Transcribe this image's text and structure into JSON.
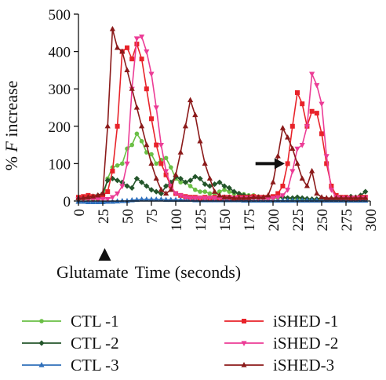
{
  "chart_data": {
    "type": "line",
    "title": "",
    "ylabel_prefix": "% ",
    "ylabel_var": "F",
    "ylabel_suffix": " increase",
    "xlabel_left": "Glutamate",
    "xlabel_right": "Time (seconds)",
    "xlim": [
      0,
      300
    ],
    "ylim": [
      0,
      500
    ],
    "x_ticks": [
      0,
      25,
      50,
      75,
      100,
      125,
      150,
      175,
      200,
      225,
      250,
      275,
      300
    ],
    "y_ticks": [
      0,
      100,
      200,
      300,
      400,
      500
    ],
    "grid": false,
    "legend_position": "bottom",
    "glutamate_marker_x": 27,
    "arrow_annotation": {
      "x_start": 182,
      "x_end": 212,
      "y": 100
    },
    "series": [
      {
        "name": "CTL -1",
        "color": "#6abf45",
        "marker": "circle",
        "x": [
          0,
          5,
          10,
          15,
          20,
          25,
          30,
          35,
          40,
          45,
          50,
          55,
          60,
          65,
          70,
          75,
          80,
          85,
          90,
          95,
          100,
          105,
          110,
          115,
          120,
          125,
          130,
          135,
          140,
          145,
          150,
          155,
          160,
          165,
          170,
          175,
          180,
          185,
          190,
          195,
          200,
          205,
          210,
          215,
          220,
          225,
          230,
          235,
          240,
          245,
          250,
          255,
          260,
          265,
          270,
          275,
          280,
          285,
          290,
          295
        ],
        "y": [
          10,
          8,
          6,
          5,
          4,
          8,
          60,
          90,
          95,
          100,
          140,
          150,
          180,
          160,
          130,
          125,
          100,
          110,
          115,
          90,
          60,
          50,
          50,
          40,
          30,
          25,
          25,
          20,
          20,
          25,
          30,
          25,
          20,
          20,
          18,
          15,
          15,
          12,
          10,
          10,
          8,
          8,
          10,
          8,
          6,
          5,
          5,
          5,
          4,
          4,
          4,
          4,
          3,
          3,
          3,
          3,
          3,
          3,
          3,
          3
        ]
      },
      {
        "name": "CTL -2",
        "color": "#24562b",
        "marker": "diamond",
        "x": [
          0,
          5,
          10,
          15,
          20,
          25,
          30,
          35,
          40,
          45,
          50,
          55,
          60,
          65,
          70,
          75,
          80,
          85,
          90,
          95,
          100,
          105,
          110,
          115,
          120,
          125,
          130,
          135,
          140,
          145,
          150,
          155,
          160,
          165,
          170,
          175,
          180,
          185,
          190,
          195,
          200,
          205,
          210,
          215,
          220,
          225,
          230,
          235,
          240,
          245,
          250,
          255,
          260,
          265,
          270,
          275,
          280,
          285,
          290,
          295
        ],
        "y": [
          5,
          8,
          10,
          12,
          15,
          20,
          55,
          60,
          55,
          50,
          40,
          35,
          60,
          50,
          40,
          30,
          25,
          20,
          40,
          50,
          65,
          60,
          50,
          55,
          65,
          60,
          45,
          40,
          45,
          50,
          40,
          35,
          25,
          20,
          15,
          12,
          10,
          10,
          8,
          8,
          10,
          12,
          10,
          8,
          8,
          10,
          8,
          6,
          5,
          5,
          8,
          5,
          5,
          5,
          5,
          8,
          12,
          10,
          15,
          25
        ]
      },
      {
        "name": "CTL -3",
        "color": "#2f6fba",
        "marker": "triangle",
        "x": [
          0,
          5,
          10,
          15,
          20,
          25,
          30,
          35,
          40,
          45,
          50,
          55,
          60,
          65,
          70,
          75,
          80,
          85,
          90,
          95,
          100,
          105,
          110,
          115,
          120,
          125,
          130,
          135,
          140,
          145,
          150,
          155,
          160,
          165,
          170,
          175,
          180,
          185,
          190,
          195,
          200,
          205,
          210,
          215,
          220,
          225,
          230,
          235,
          240,
          245,
          250,
          255,
          260,
          265,
          270,
          275,
          280,
          285,
          290,
          295
        ],
        "y": [
          -2,
          -2,
          -3,
          -3,
          -3,
          -3,
          -2,
          -2,
          -1,
          0,
          0,
          2,
          3,
          4,
          4,
          4,
          4,
          4,
          3,
          3,
          3,
          3,
          3,
          3,
          2,
          2,
          2,
          2,
          2,
          2,
          2,
          2,
          2,
          2,
          1,
          1,
          1,
          1,
          1,
          1,
          1,
          1,
          1,
          1,
          1,
          1,
          1,
          1,
          1,
          1,
          1,
          1,
          1,
          1,
          1,
          1,
          1,
          1,
          1,
          1
        ]
      },
      {
        "name": "iSHED -1",
        "color": "#e8232a",
        "marker": "square",
        "x": [
          0,
          5,
          10,
          15,
          20,
          25,
          30,
          35,
          40,
          45,
          50,
          55,
          60,
          65,
          70,
          75,
          80,
          85,
          90,
          95,
          100,
          105,
          110,
          115,
          120,
          125,
          130,
          135,
          140,
          145,
          150,
          155,
          160,
          165,
          170,
          175,
          180,
          185,
          190,
          195,
          200,
          205,
          210,
          215,
          220,
          225,
          230,
          235,
          240,
          245,
          250,
          255,
          260,
          265,
          270,
          275,
          280,
          285,
          290,
          295
        ],
        "y": [
          10,
          12,
          15,
          12,
          10,
          15,
          25,
          80,
          200,
          400,
          410,
          380,
          420,
          380,
          300,
          220,
          150,
          100,
          70,
          40,
          20,
          15,
          12,
          10,
          10,
          8,
          10,
          8,
          10,
          8,
          10,
          10,
          8,
          10,
          10,
          10,
          12,
          10,
          10,
          10,
          12,
          20,
          40,
          100,
          200,
          290,
          260,
          200,
          240,
          235,
          180,
          100,
          40,
          15,
          10,
          10,
          8,
          8,
          10,
          10
        ]
      },
      {
        "name": "iSHED -2",
        "color": "#ec3c96",
        "marker": "triangle-down",
        "x": [
          0,
          5,
          10,
          15,
          20,
          25,
          30,
          35,
          40,
          45,
          50,
          55,
          60,
          65,
          70,
          75,
          80,
          85,
          90,
          95,
          100,
          105,
          110,
          115,
          120,
          125,
          130,
          135,
          140,
          145,
          150,
          155,
          160,
          165,
          170,
          175,
          180,
          185,
          190,
          195,
          200,
          205,
          210,
          215,
          220,
          225,
          230,
          235,
          240,
          245,
          250,
          255,
          260,
          265,
          270,
          275,
          280,
          285,
          290,
          295
        ],
        "y": [
          5,
          5,
          5,
          5,
          5,
          5,
          5,
          10,
          20,
          40,
          100,
          300,
          435,
          440,
          400,
          340,
          250,
          150,
          80,
          40,
          20,
          15,
          10,
          8,
          8,
          8,
          8,
          8,
          8,
          8,
          8,
          8,
          8,
          8,
          8,
          8,
          8,
          8,
          8,
          8,
          8,
          10,
          15,
          30,
          80,
          140,
          150,
          200,
          340,
          310,
          260,
          120,
          30,
          10,
          8,
          8,
          8,
          8,
          8,
          8
        ]
      },
      {
        "name": "iSHED-3",
        "color": "#8b1a1a",
        "marker": "triangle",
        "x": [
          0,
          5,
          10,
          15,
          20,
          25,
          30,
          35,
          40,
          45,
          50,
          55,
          60,
          65,
          70,
          75,
          80,
          85,
          90,
          95,
          100,
          105,
          110,
          115,
          120,
          125,
          130,
          135,
          140,
          145,
          150,
          155,
          160,
          165,
          170,
          175,
          180,
          185,
          190,
          195,
          200,
          205,
          210,
          215,
          220,
          225,
          230,
          235,
          240,
          245,
          250,
          255,
          260,
          265,
          270,
          275,
          280,
          285,
          290,
          295
        ],
        "y": [
          8,
          8,
          10,
          12,
          15,
          20,
          200,
          460,
          410,
          400,
          350,
          300,
          250,
          200,
          150,
          100,
          60,
          30,
          20,
          30,
          70,
          130,
          200,
          270,
          230,
          160,
          100,
          60,
          25,
          15,
          10,
          10,
          8,
          8,
          8,
          8,
          10,
          10,
          10,
          15,
          50,
          120,
          195,
          170,
          140,
          100,
          60,
          40,
          80,
          20,
          10,
          8,
          8,
          8,
          8,
          8,
          8,
          8,
          8,
          8
        ]
      }
    ]
  }
}
